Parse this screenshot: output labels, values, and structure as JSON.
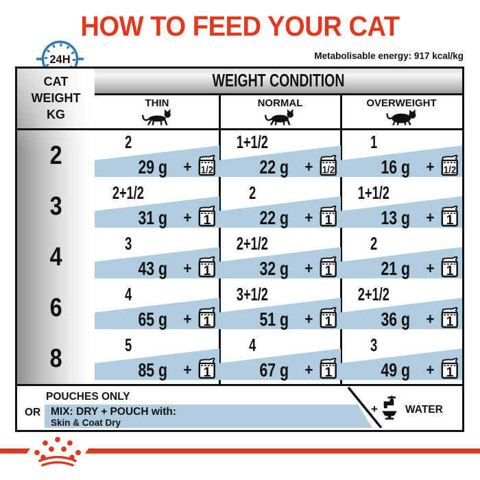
{
  "title": "HOW TO FEED YOUR CAT",
  "energy_note": "Metabolisable energy: 917 kcal/kg",
  "clock_label": "24H",
  "table": {
    "corner_header": [
      "CAT",
      "WEIGHT",
      "KG"
    ],
    "main_header": "WEIGHT CONDITION",
    "conditions": [
      "THIN",
      "NORMAL",
      "OVERWEIGHT"
    ],
    "rows": [
      {
        "weight": "2",
        "cells": [
          {
            "pouches": "2",
            "dry": "29 g",
            "badge": "1/2"
          },
          {
            "pouches": "1+1/2",
            "dry": "22 g",
            "badge": "1/2"
          },
          {
            "pouches": "1",
            "dry": "16 g",
            "badge": "1/2"
          }
        ]
      },
      {
        "weight": "3",
        "cells": [
          {
            "pouches": "2+1/2",
            "dry": "31 g",
            "badge": "1"
          },
          {
            "pouches": "2",
            "dry": "22 g",
            "badge": "1"
          },
          {
            "pouches": "1+1/2",
            "dry": "13 g",
            "badge": "1"
          }
        ]
      },
      {
        "weight": "4",
        "cells": [
          {
            "pouches": "3",
            "dry": "43 g",
            "badge": "1"
          },
          {
            "pouches": "2+1/2",
            "dry": "32 g",
            "badge": "1"
          },
          {
            "pouches": "2",
            "dry": "21 g",
            "badge": "1"
          }
        ]
      },
      {
        "weight": "6",
        "cells": [
          {
            "pouches": "4",
            "dry": "65 g",
            "badge": "1"
          },
          {
            "pouches": "3+1/2",
            "dry": "51 g",
            "badge": "1"
          },
          {
            "pouches": "2+1/2",
            "dry": "36 g",
            "badge": "1"
          }
        ]
      },
      {
        "weight": "8",
        "cells": [
          {
            "pouches": "5",
            "dry": "85 g",
            "badge": "1"
          },
          {
            "pouches": "4",
            "dry": "67 g",
            "badge": "1"
          },
          {
            "pouches": "3",
            "dry": "49 g",
            "badge": "1"
          }
        ]
      }
    ]
  },
  "footer": {
    "option1": "POUCHES ONLY",
    "or_label": "OR",
    "option2_line1": "MIX: DRY + POUCH with:",
    "option2_line2": "Skin & Coat Dry",
    "plus_sign": "+",
    "water_label": "WATER"
  },
  "colors": {
    "accent_red": "#e0391d",
    "band_blue": "#b0cde0",
    "clock_blue": "#2e77b2",
    "ink": "#111111"
  }
}
